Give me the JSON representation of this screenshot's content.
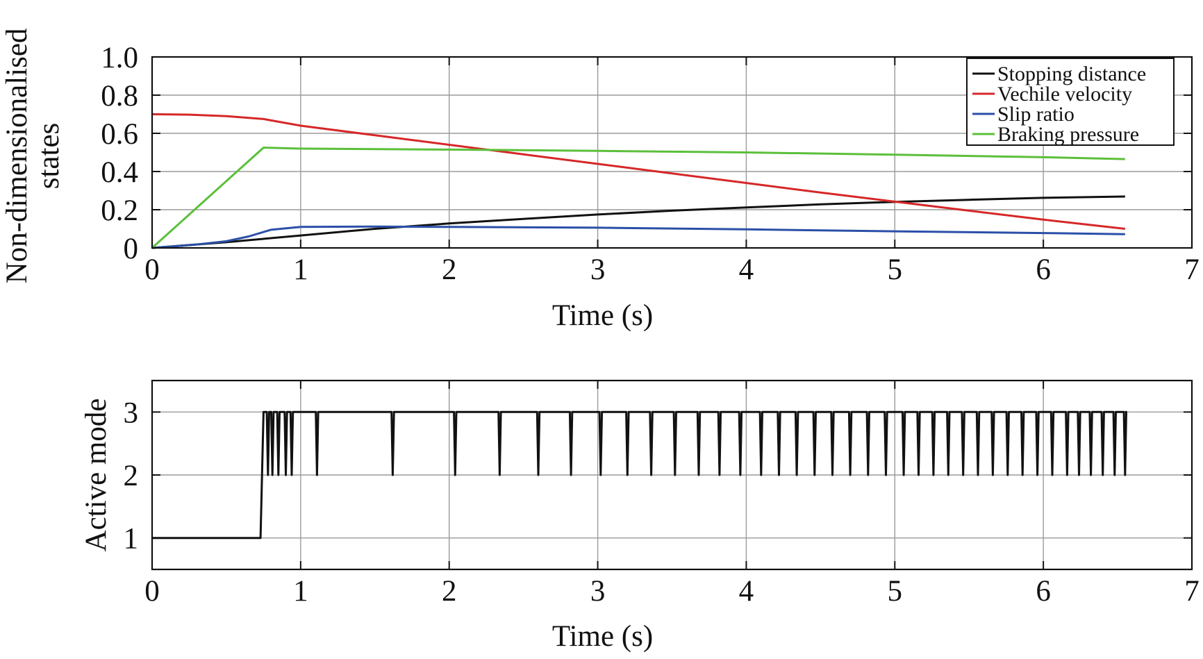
{
  "chart_data": [
    {
      "type": "line",
      "ylabel": [
        "Non-dimensionalised",
        "states"
      ],
      "xlabel": "Time (s)",
      "xlim": [
        0,
        7
      ],
      "ylim": [
        0,
        1.0
      ],
      "xticks": [
        "0",
        "1",
        "2",
        "3",
        "4",
        "5",
        "6",
        "7"
      ],
      "yticks": [
        "0",
        "0.2",
        "0.4",
        "0.6",
        "0.8",
        "1.0"
      ],
      "grid": true,
      "legend_position": "top-right",
      "series": [
        {
          "name": "Stopping distance",
          "color": "#111111",
          "points": [
            [
              0,
              0
            ],
            [
              0.5,
              0.03
            ],
            [
              1,
              0.065
            ],
            [
              1.5,
              0.1
            ],
            [
              2,
              0.128
            ],
            [
              2.5,
              0.152
            ],
            [
              3,
              0.175
            ],
            [
              3.5,
              0.195
            ],
            [
              4,
              0.212
            ],
            [
              4.5,
              0.228
            ],
            [
              5,
              0.241
            ],
            [
              5.5,
              0.252
            ],
            [
              6,
              0.262
            ],
            [
              6.55,
              0.269
            ]
          ]
        },
        {
          "name": "Vechile velocity",
          "color": "#d62728",
          "points": [
            [
              0,
              0.7
            ],
            [
              0.25,
              0.698
            ],
            [
              0.5,
              0.69
            ],
            [
              0.75,
              0.675
            ],
            [
              1,
              0.64
            ],
            [
              1.5,
              0.59
            ],
            [
              2,
              0.54
            ],
            [
              2.5,
              0.49
            ],
            [
              3,
              0.44
            ],
            [
              3.5,
              0.39
            ],
            [
              4,
              0.34
            ],
            [
              4.5,
              0.29
            ],
            [
              5,
              0.242
            ],
            [
              5.5,
              0.195
            ],
            [
              6,
              0.148
            ],
            [
              6.55,
              0.1
            ]
          ]
        },
        {
          "name": "Slip ratio",
          "color": "#2b4fa8",
          "points": [
            [
              0,
              0
            ],
            [
              0.3,
              0.018
            ],
            [
              0.5,
              0.035
            ],
            [
              0.65,
              0.06
            ],
            [
              0.8,
              0.095
            ],
            [
              1,
              0.11
            ],
            [
              1.5,
              0.112
            ],
            [
              2,
              0.11
            ],
            [
              3,
              0.106
            ],
            [
              4,
              0.097
            ],
            [
              5,
              0.087
            ],
            [
              6,
              0.078
            ],
            [
              6.55,
              0.072
            ]
          ]
        },
        {
          "name": "Braking pressure",
          "color": "#5bbf3a",
          "points": [
            [
              0,
              0
            ],
            [
              0.75,
              0.525
            ],
            [
              1,
              0.52
            ],
            [
              2,
              0.515
            ],
            [
              3,
              0.508
            ],
            [
              4,
              0.5
            ],
            [
              5,
              0.488
            ],
            [
              6,
              0.475
            ],
            [
              6.55,
              0.465
            ]
          ]
        }
      ]
    },
    {
      "type": "line",
      "ylabel": "Active mode",
      "xlabel": "Time (s)",
      "xlim": [
        0,
        7
      ],
      "ylim": [
        0.5,
        3.5
      ],
      "xticks": [
        "0",
        "1",
        "2",
        "3",
        "4",
        "5",
        "6",
        "7"
      ],
      "yticks": [
        "1",
        "2",
        "3"
      ],
      "grid": true,
      "series": [
        {
          "color": "#111111",
          "base_points": [
            [
              0,
              1
            ],
            [
              0.73,
              1
            ],
            [
              0.75,
              3
            ],
            [
              6.55,
              3
            ]
          ],
          "dip_to": 2,
          "dip_times": [
            0.78,
            0.81,
            0.85,
            0.9,
            0.94,
            1.11,
            1.62,
            2.04,
            2.34,
            2.6,
            2.82,
            3.02,
            3.2,
            3.36,
            3.52,
            3.68,
            3.82,
            3.96,
            4.1,
            4.22,
            4.34,
            4.46,
            4.58,
            4.7,
            4.82,
            4.94,
            5.06,
            5.16,
            5.26,
            5.36,
            5.46,
            5.56,
            5.66,
            5.76,
            5.86,
            5.96,
            6.06,
            6.16,
            6.24,
            6.32,
            6.4,
            6.48,
            6.55
          ]
        }
      ]
    }
  ]
}
